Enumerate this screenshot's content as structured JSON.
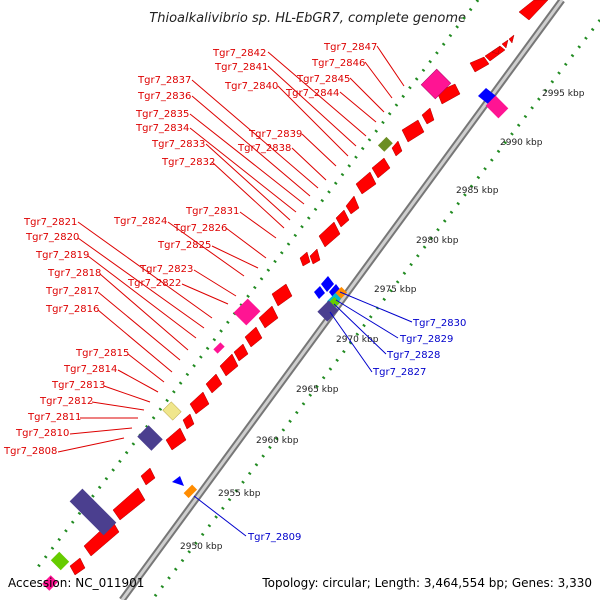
{
  "title": "Thioalkalivibrio sp. HL-EbGR7, complete genome",
  "footer": {
    "accession": "Accession: NC_011901",
    "summary": "Topology: circular; Length: 3,464,554 bp; Genes: 3,330"
  },
  "colors": {
    "forward_gene": "#ff0000",
    "reverse_gene": "#0000ff",
    "rna": "#ff1493",
    "pseudogene": "#4b3f8f",
    "other_orange": "#ff8c00",
    "other_yellow": "#f0e68c",
    "other_olive": "#6b8e23",
    "other_green": "#66cc00",
    "other_cyan": "#00bcd4",
    "gc_dots": "#228b22",
    "forward_label": "#dd0000",
    "reverse_label": "#0000cc"
  },
  "scale_ticks": [
    "2950 kbp",
    "2955 kbp",
    "2960 kbp",
    "2965 kbp",
    "2970 kbp",
    "2975 kbp",
    "2980 kbp",
    "2985 kbp",
    "2990 kbp",
    "2995 kbp"
  ],
  "forward_labels": [
    "Tgr7_2847",
    "Tgr7_2846",
    "Tgr7_2845",
    "Tgr7_2844",
    "Tgr7_2842",
    "Tgr7_2841",
    "Tgr7_2840",
    "Tgr7_2839",
    "Tgr7_2838",
    "Tgr7_2837",
    "Tgr7_2836",
    "Tgr7_2835",
    "Tgr7_2834",
    "Tgr7_2833",
    "Tgr7_2832",
    "Tgr7_2831",
    "Tgr7_2826",
    "Tgr7_2825",
    "Tgr7_2824",
    "Tgr7_2823",
    "Tgr7_2822",
    "Tgr7_2821",
    "Tgr7_2820",
    "Tgr7_2819",
    "Tgr7_2818",
    "Tgr7_2817",
    "Tgr7_2816",
    "Tgr7_2815",
    "Tgr7_2814",
    "Tgr7_2813",
    "Tgr7_2812",
    "Tgr7_2811",
    "Tgr7_2810",
    "Tgr7_2808"
  ],
  "reverse_labels": [
    "Tgr7_2830",
    "Tgr7_2829",
    "Tgr7_2828",
    "Tgr7_2827",
    "Tgr7_2809"
  ]
}
